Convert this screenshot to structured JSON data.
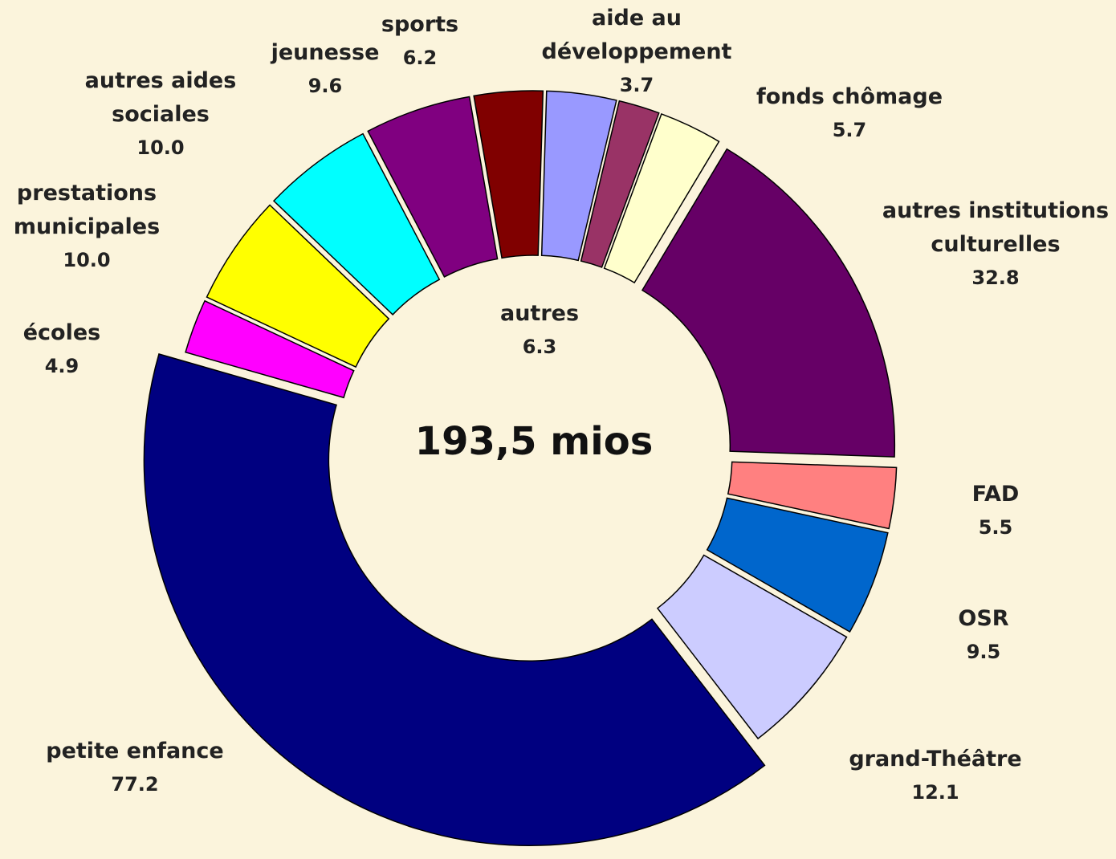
{
  "chart_data": {
    "type": "donut",
    "total_label": "193,5 mios",
    "categories": [
      "autres",
      "aide au développement",
      "fonds chômage",
      "autres institutions culturelles",
      "FAD",
      "OSR",
      "grand-Théâtre",
      "petite enfance",
      "écoles",
      "prestations municipales",
      "autres aides sociales",
      "jeunesse",
      "sports"
    ],
    "values": [
      6.3,
      3.7,
      5.7,
      32.8,
      5.5,
      9.5,
      12.1,
      77.2,
      4.9,
      10,
      10,
      9.6,
      6.2
    ],
    "value_labels": [
      "6.3",
      "3.7",
      "5.7",
      "32.8",
      "5.5",
      "9.5",
      "12.1",
      "77.2",
      "4.9",
      "10.0",
      "10.0",
      "9.6",
      "6.2"
    ],
    "colors": [
      "#9999ff",
      "#993366",
      "#ffffcc",
      "#660066",
      "#ff8080",
      "#0066cc",
      "#ccccff",
      "#000080",
      "#ff00ff",
      "#ffff00",
      "#00ffff",
      "#800080",
      "#800000"
    ]
  }
}
